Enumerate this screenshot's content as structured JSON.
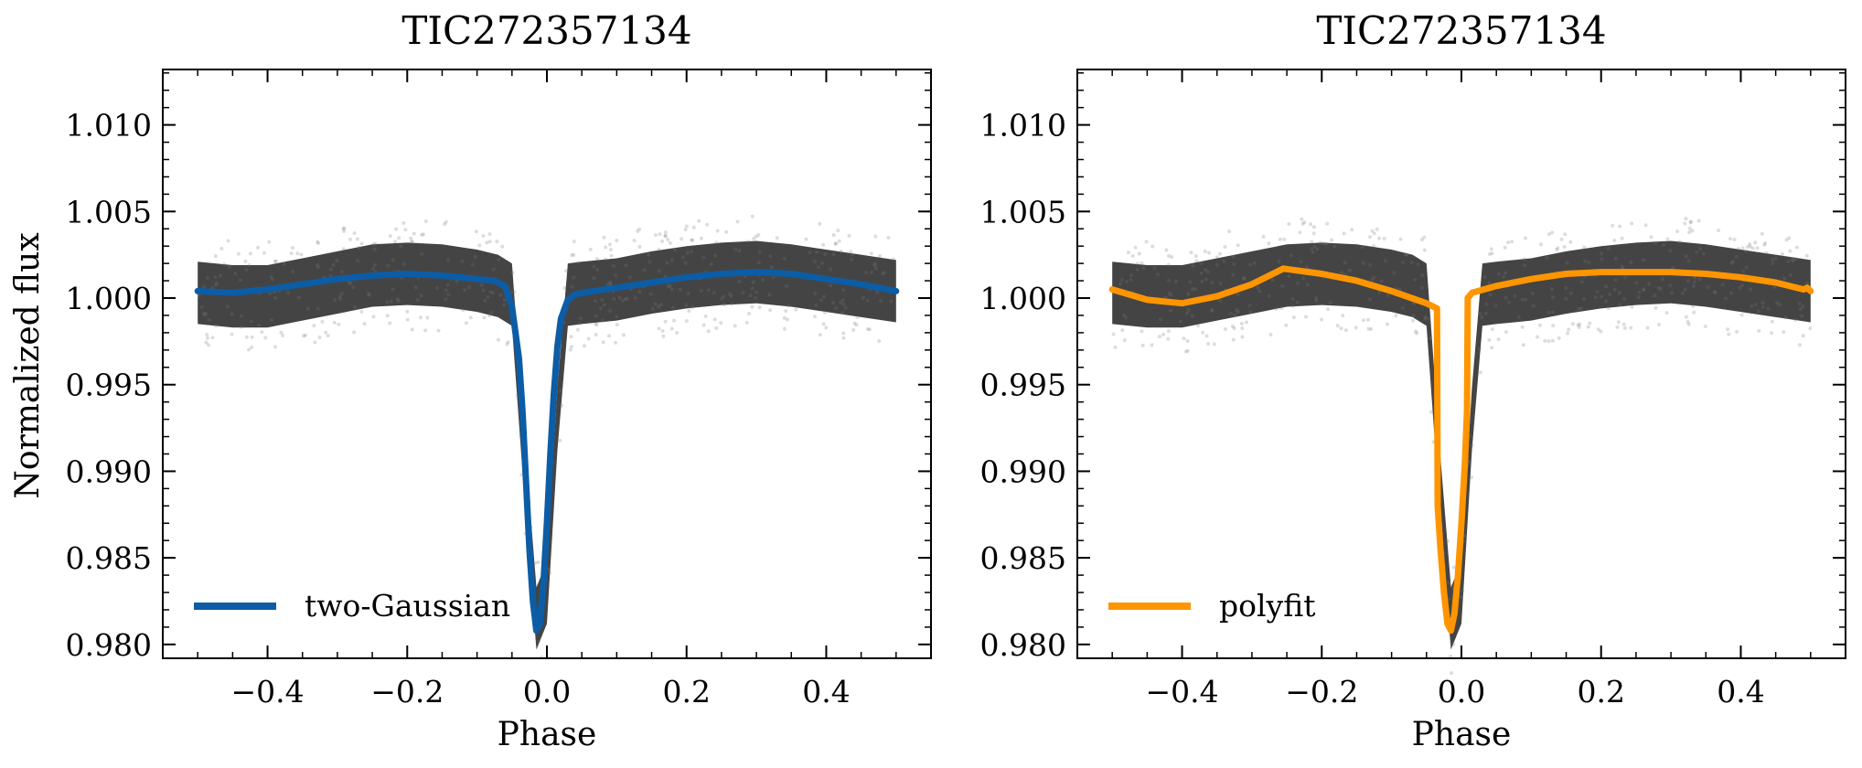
{
  "chart_data": [
    {
      "type": "scatter",
      "title": "TIC272357134",
      "xlabel": "Phase",
      "ylabel": "Normalized flux",
      "xlim": [
        -0.55,
        0.55
      ],
      "ylim": [
        0.9792,
        1.0132
      ],
      "xticks": [
        -0.4,
        -0.2,
        0.0,
        0.2,
        0.4
      ],
      "xtick_labels": [
        "−0.4",
        "−0.2",
        "0.0",
        "0.2",
        "0.4"
      ],
      "yticks": [
        0.98,
        0.985,
        0.99,
        0.995,
        1.0,
        1.005,
        1.01
      ],
      "ytick_labels": [
        "0.980",
        "0.985",
        "0.990",
        "0.995",
        "1.000",
        "1.005",
        "1.010"
      ],
      "grid": false,
      "legend_position": "lower-left",
      "colors": {
        "data_points": "#444444",
        "model": "#0C5DA5"
      },
      "data_band": {
        "x": [
          -0.5,
          -0.45,
          -0.4,
          -0.35,
          -0.3,
          -0.25,
          -0.2,
          -0.15,
          -0.1,
          -0.07,
          -0.05,
          -0.03,
          -0.015,
          0.0,
          0.015,
          0.03,
          0.05,
          0.1,
          0.15,
          0.2,
          0.25,
          0.3,
          0.35,
          0.4,
          0.45,
          0.5
        ],
        "y_center": [
          1.0003,
          1.0001,
          1.0001,
          1.0005,
          1.0009,
          1.0013,
          1.0014,
          1.0013,
          1.001,
          1.0007,
          1.0002,
          0.989,
          0.9815,
          0.983,
          0.993,
          1.0002,
          1.0003,
          1.0005,
          1.0009,
          1.0012,
          1.0014,
          1.0015,
          1.0013,
          1.001,
          1.0007,
          1.0004
        ],
        "y_spread": 0.0018
      },
      "series": [
        {
          "name": "two-Gaussian",
          "x": [
            -0.5,
            -0.45,
            -0.4,
            -0.35,
            -0.3,
            -0.25,
            -0.2,
            -0.15,
            -0.1,
            -0.075,
            -0.06,
            -0.05,
            -0.04,
            -0.035,
            -0.03,
            -0.025,
            -0.02,
            -0.015,
            -0.01,
            -0.005,
            0.0,
            0.005,
            0.01,
            0.015,
            0.02,
            0.03,
            0.04,
            0.05,
            0.1,
            0.15,
            0.2,
            0.25,
            0.3,
            0.35,
            0.4,
            0.45,
            0.5
          ],
          "y": [
            1.0004,
            1.0003,
            1.0005,
            1.0008,
            1.0011,
            1.0013,
            1.0014,
            1.0013,
            1.0011,
            1.001,
            1.0007,
            0.9995,
            0.9965,
            0.9935,
            0.9895,
            0.9855,
            0.9825,
            0.9808,
            0.9812,
            0.9835,
            0.987,
            0.991,
            0.9945,
            0.9972,
            0.9988,
            0.9999,
            1.0002,
            1.0003,
            1.0006,
            1.0009,
            1.0012,
            1.0014,
            1.0015,
            1.0014,
            1.0011,
            1.0008,
            1.0004
          ]
        }
      ]
    },
    {
      "type": "scatter",
      "title": "TIC272357134",
      "xlabel": "Phase",
      "ylabel": "",
      "xlim": [
        -0.55,
        0.55
      ],
      "ylim": [
        0.9792,
        1.0132
      ],
      "xticks": [
        -0.4,
        -0.2,
        0.0,
        0.2,
        0.4
      ],
      "xtick_labels": [
        "−0.4",
        "−0.2",
        "0.0",
        "0.2",
        "0.4"
      ],
      "yticks": [
        0.98,
        0.985,
        0.99,
        0.995,
        1.0,
        1.005,
        1.01
      ],
      "ytick_labels": [
        "0.980",
        "0.985",
        "0.990",
        "0.995",
        "1.000",
        "1.005",
        "1.010"
      ],
      "grid": false,
      "legend_position": "lower-left",
      "colors": {
        "data_points": "#444444",
        "model": "#FF9500"
      },
      "data_band": {
        "x": [
          -0.5,
          -0.45,
          -0.4,
          -0.35,
          -0.3,
          -0.25,
          -0.2,
          -0.15,
          -0.1,
          -0.07,
          -0.05,
          -0.03,
          -0.015,
          0.0,
          0.015,
          0.03,
          0.05,
          0.1,
          0.15,
          0.2,
          0.25,
          0.3,
          0.35,
          0.4,
          0.45,
          0.5
        ],
        "y_center": [
          1.0003,
          1.0001,
          1.0001,
          1.0005,
          1.0009,
          1.0013,
          1.0014,
          1.0013,
          1.001,
          1.0007,
          1.0002,
          0.989,
          0.9815,
          0.983,
          0.993,
          1.0002,
          1.0003,
          1.0005,
          1.0009,
          1.0012,
          1.0014,
          1.0015,
          1.0013,
          1.001,
          1.0007,
          1.0004
        ],
        "y_spread": 0.0018
      },
      "series": [
        {
          "name": "polyfit",
          "x": [
            -0.5,
            -0.45,
            -0.4,
            -0.35,
            -0.3,
            -0.255,
            -0.2,
            -0.15,
            -0.1,
            -0.05,
            -0.035,
            -0.034,
            -0.03,
            -0.025,
            -0.02,
            -0.015,
            -0.01,
            -0.005,
            0.0,
            0.005,
            0.008,
            0.009,
            0.015,
            0.05,
            0.1,
            0.15,
            0.2,
            0.25,
            0.3,
            0.35,
            0.4,
            0.45,
            0.49,
            0.495,
            0.5
          ],
          "y": [
            1.0005,
            0.9999,
            0.9997,
            1.0001,
            1.0008,
            1.0017,
            1.0014,
            1.001,
            1.0004,
            0.9997,
            0.9994,
            0.988,
            0.9855,
            0.983,
            0.9812,
            0.9808,
            0.9818,
            0.984,
            0.987,
            0.9905,
            0.9935,
            1.0,
            1.0003,
            1.0007,
            1.0011,
            1.0014,
            1.0015,
            1.0015,
            1.0015,
            1.0014,
            1.0012,
            1.0009,
            1.0005,
            1.0006,
            1.0004
          ]
        }
      ]
    }
  ]
}
